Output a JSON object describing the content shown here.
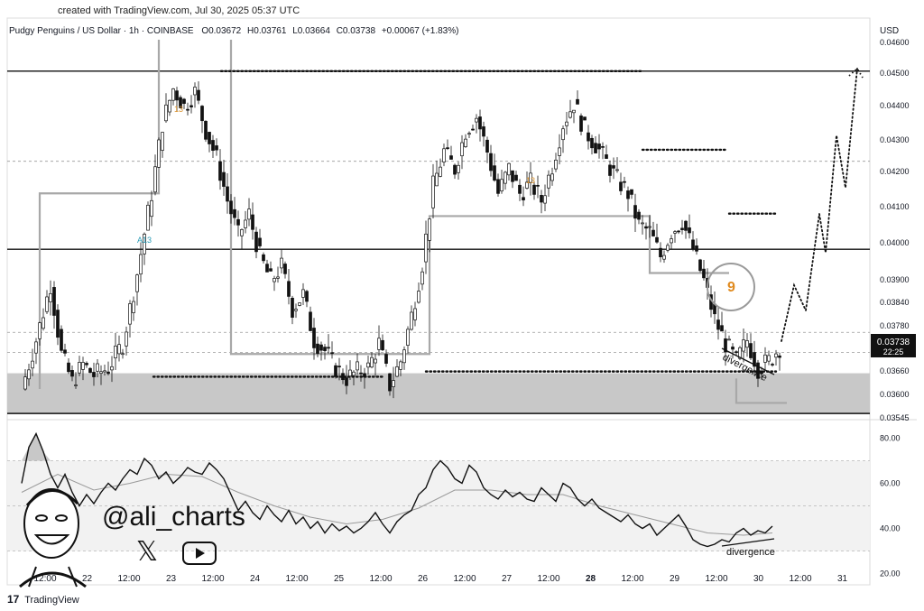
{
  "header": {
    "created": "created with TradingView.com, Jul 30, 2025 05:37 UTC",
    "symbol": "Pudgy Penguins / US Dollar · 1h · COINBASE",
    "open": "O0.03672",
    "high": "H0.03761",
    "low": "L0.03664",
    "close": "C0.03738",
    "change": "+0.00067 (+1.83%)"
  },
  "currency_label": "USD",
  "price_tag": {
    "value": "0.03738",
    "countdown": "22:25"
  },
  "colors": {
    "bull": "#ffffff",
    "bear": "#111111",
    "zone": "#c8c8c8",
    "price_tag": "#111111"
  },
  "branding": {
    "handle": "@ali_charts",
    "x_icon": "x-logo-icon",
    "play_icon": "youtube-play-icon",
    "footer": "TradingView",
    "footer_logo": "tv-logo-icon"
  },
  "chart_data": [
    {
      "type": "candlestick",
      "title": "Pudgy Penguins / US Dollar · 1h · COINBASE",
      "ylim": [
        0.03545,
        0.0462
      ],
      "y_ticks": [
        "0.04600",
        "0.04500",
        "0.04400",
        "0.04300",
        "0.04200",
        "0.04100",
        "0.04000",
        "0.03900",
        "0.03840",
        "0.03780",
        "0.03720",
        "0.03660",
        "0.03600",
        "0.03545"
      ],
      "x_ticks": [
        "12:00",
        "22",
        "12:00",
        "23",
        "12:00",
        "24",
        "12:00",
        "25",
        "12:00",
        "26",
        "12:00",
        "27",
        "12:00",
        "28",
        "12:00",
        "29",
        "12:00",
        "30",
        "12:00",
        "31"
      ],
      "x_tick_bold": "28",
      "grid": false,
      "close_path": [
        [
          0,
          0.0362
        ],
        [
          4,
          0.0376
        ],
        [
          8,
          0.0392
        ],
        [
          11,
          0.0372
        ],
        [
          14,
          0.0364
        ],
        [
          17,
          0.0369
        ],
        [
          20,
          0.0366
        ],
        [
          24,
          0.0368
        ],
        [
          28,
          0.0375
        ],
        [
          32,
          0.0395
        ],
        [
          36,
          0.0418
        ],
        [
          39,
          0.0438
        ],
        [
          42,
          0.0448
        ],
        [
          45,
          0.0443
        ],
        [
          48,
          0.0447
        ],
        [
          51,
          0.0436
        ],
        [
          54,
          0.0428
        ],
        [
          57,
          0.0416
        ],
        [
          60,
          0.0406
        ],
        [
          63,
          0.0412
        ],
        [
          66,
          0.04
        ],
        [
          69,
          0.0393
        ],
        [
          72,
          0.0397
        ],
        [
          75,
          0.0385
        ],
        [
          78,
          0.0389
        ],
        [
          81,
          0.0376
        ],
        [
          84,
          0.0373
        ],
        [
          87,
          0.0368
        ],
        [
          90,
          0.0365
        ],
        [
          93,
          0.0367
        ],
        [
          96,
          0.0368
        ],
        [
          99,
          0.0375
        ],
        [
          102,
          0.0363
        ],
        [
          105,
          0.037
        ],
        [
          108,
          0.0383
        ],
        [
          111,
          0.0398
        ],
        [
          114,
          0.042
        ],
        [
          117,
          0.043
        ],
        [
          120,
          0.0425
        ],
        [
          123,
          0.0436
        ],
        [
          126,
          0.044
        ],
        [
          129,
          0.043
        ],
        [
          132,
          0.0418
        ],
        [
          135,
          0.0425
        ],
        [
          138,
          0.0418
        ],
        [
          141,
          0.0421
        ],
        [
          144,
          0.0416
        ],
        [
          147,
          0.0426
        ],
        [
          150,
          0.0438
        ],
        [
          153,
          0.0444
        ],
        [
          156,
          0.0436
        ],
        [
          159,
          0.0432
        ],
        [
          162,
          0.0427
        ],
        [
          165,
          0.0422
        ],
        [
          168,
          0.0418
        ],
        [
          171,
          0.0409
        ],
        [
          174,
          0.0407
        ],
        [
          177,
          0.04
        ],
        [
          180,
          0.0407
        ],
        [
          183,
          0.041
        ],
        [
          186,
          0.0402
        ],
        [
          189,
          0.0393
        ],
        [
          192,
          0.0382
        ],
        [
          195,
          0.0375
        ],
        [
          198,
          0.037
        ],
        [
          201,
          0.0376
        ],
        [
          204,
          0.0368
        ],
        [
          207,
          0.037
        ],
        [
          210,
          0.0374
        ]
      ],
      "levels": [
        {
          "label": "support-zone",
          "from": 0.0355,
          "to": 0.03665
        },
        {
          "label": "resistance-top",
          "price": 0.0453
        },
        {
          "label": "mid-level",
          "price": 0.0402
        },
        {
          "label": "resistance-dashed",
          "price": 0.04272
        },
        {
          "label": "dashed-level-1",
          "price": 0.03782
        },
        {
          "label": "dashed-level-2",
          "price": 0.03725
        }
      ],
      "annotations": [
        {
          "label": "divergence",
          "text": "divergence"
        },
        {
          "label": "td-9-circle",
          "text": "9"
        },
        {
          "label": "td-13-a",
          "text": "A13"
        },
        {
          "label": "td-13-b",
          "text": "13"
        },
        {
          "label": "td-13-c",
          "text": "13"
        }
      ]
    },
    {
      "type": "line",
      "title": "",
      "ylim": [
        15,
        87
      ],
      "y_ticks": [
        "80.00",
        "60.00",
        "40.00",
        "20.00"
      ],
      "band": [
        30,
        70
      ],
      "series": [
        {
          "values": [
            [
              0,
              60
            ],
            [
              2,
              76
            ],
            [
              4,
              82
            ],
            [
              6,
              74
            ],
            [
              8,
              64
            ],
            [
              10,
              58
            ],
            [
              12,
              64
            ],
            [
              14,
              56
            ],
            [
              16,
              50
            ],
            [
              18,
              55
            ],
            [
              20,
              51
            ],
            [
              22,
              56
            ],
            [
              24,
              60
            ],
            [
              26,
              57
            ],
            [
              28,
              62
            ],
            [
              30,
              66
            ],
            [
              32,
              64
            ],
            [
              34,
              71
            ],
            [
              36,
              68
            ],
            [
              38,
              62
            ],
            [
              40,
              65
            ],
            [
              42,
              60
            ],
            [
              44,
              63
            ],
            [
              46,
              67
            ],
            [
              48,
              65
            ],
            [
              50,
              64
            ],
            [
              52,
              69
            ],
            [
              54,
              66
            ],
            [
              56,
              62
            ],
            [
              58,
              55
            ],
            [
              60,
              48
            ],
            [
              62,
              52
            ],
            [
              64,
              47
            ],
            [
              66,
              44
            ],
            [
              68,
              50
            ],
            [
              70,
              46
            ],
            [
              72,
              43
            ],
            [
              74,
              48
            ],
            [
              76,
              42
            ],
            [
              78,
              45
            ],
            [
              80,
              40
            ],
            [
              82,
              43
            ],
            [
              84,
              38
            ],
            [
              86,
              42
            ],
            [
              88,
              39
            ],
            [
              90,
              41
            ],
            [
              92,
              38
            ],
            [
              94,
              40
            ],
            [
              96,
              43
            ],
            [
              98,
              47
            ],
            [
              100,
              42
            ],
            [
              102,
              38
            ],
            [
              104,
              43
            ],
            [
              106,
              46
            ],
            [
              108,
              48
            ],
            [
              110,
              55
            ],
            [
              112,
              58
            ],
            [
              114,
              66
            ],
            [
              116,
              70
            ],
            [
              118,
              67
            ],
            [
              120,
              62
            ],
            [
              122,
              60
            ],
            [
              124,
              68
            ],
            [
              126,
              65
            ],
            [
              128,
              58
            ],
            [
              130,
              55
            ],
            [
              132,
              53
            ],
            [
              134,
              57
            ],
            [
              136,
              54
            ],
            [
              138,
              56
            ],
            [
              140,
              53
            ],
            [
              142,
              52
            ],
            [
              144,
              58
            ],
            [
              146,
              55
            ],
            [
              148,
              52
            ],
            [
              150,
              60
            ],
            [
              152,
              58
            ],
            [
              154,
              53
            ],
            [
              156,
              50
            ],
            [
              158,
              53
            ],
            [
              160,
              49
            ],
            [
              162,
              47
            ],
            [
              164,
              45
            ],
            [
              166,
              43
            ],
            [
              168,
              46
            ],
            [
              170,
              42
            ],
            [
              172,
              40
            ],
            [
              174,
              42
            ],
            [
              176,
              37
            ],
            [
              178,
              40
            ],
            [
              180,
              43
            ],
            [
              182,
              46
            ],
            [
              184,
              41
            ],
            [
              186,
              35
            ],
            [
              188,
              33
            ],
            [
              190,
              32
            ],
            [
              192,
              33
            ],
            [
              194,
              35
            ],
            [
              196,
              34
            ],
            [
              198,
              38
            ],
            [
              200,
              40
            ],
            [
              202,
              37
            ],
            [
              204,
              39
            ],
            [
              206,
              38
            ],
            [
              208,
              41
            ]
          ]
        },
        {
          "values": [
            [
              0,
              56
            ],
            [
              10,
              64
            ],
            [
              20,
              57
            ],
            [
              30,
              60
            ],
            [
              40,
              64
            ],
            [
              50,
              63
            ],
            [
              60,
              56
            ],
            [
              70,
              50
            ],
            [
              80,
              45
            ],
            [
              90,
              42
            ],
            [
              100,
              44
            ],
            [
              110,
              49
            ],
            [
              120,
              57
            ],
            [
              130,
              57
            ],
            [
              140,
              55
            ],
            [
              150,
              55
            ],
            [
              160,
              50
            ],
            [
              170,
              46
            ],
            [
              180,
              42
            ],
            [
              190,
              38
            ],
            [
              200,
              37
            ],
            [
              208,
              38
            ]
          ]
        }
      ],
      "annotations": [
        {
          "label": "divergence",
          "text": "divergence"
        }
      ]
    }
  ]
}
